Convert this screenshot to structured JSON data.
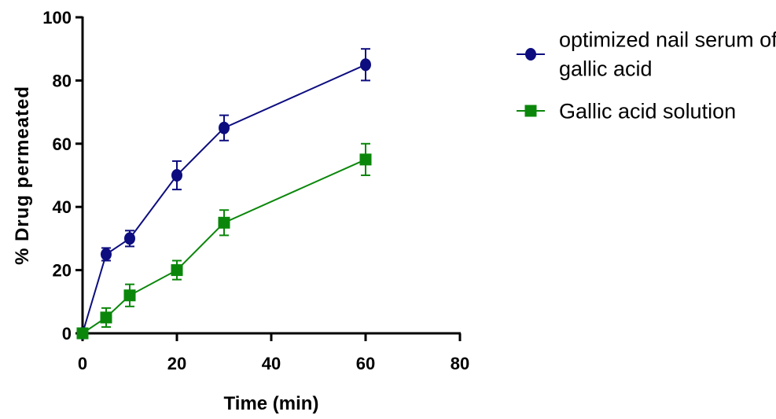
{
  "chart_data": {
    "type": "line",
    "xlabel": "Time (min)",
    "ylabel": "% Drug permeated",
    "xlim": [
      0,
      80
    ],
    "ylim": [
      0,
      100
    ],
    "x_ticks": [
      0,
      20,
      40,
      60,
      80
    ],
    "y_ticks": [
      0,
      20,
      40,
      60,
      80,
      100
    ],
    "legend_position": "top-right",
    "grid": false,
    "series": [
      {
        "name": "optimized nail serum of gallic acid",
        "legend_lines": [
          "optimized nail serum of",
          "gallic acid"
        ],
        "marker": "circle",
        "color": "#0d0d80",
        "x": [
          0,
          5,
          10,
          20,
          30,
          60
        ],
        "y": [
          0,
          25,
          30,
          50,
          65,
          85
        ],
        "error": [
          0,
          2,
          2.5,
          4.5,
          4,
          5
        ]
      },
      {
        "name": "Gallic acid solution",
        "legend_lines": [
          "Gallic acid solution"
        ],
        "marker": "square",
        "color": "#0a870a",
        "x": [
          0,
          5,
          10,
          20,
          30,
          60
        ],
        "y": [
          0,
          5,
          12,
          20,
          35,
          55
        ],
        "error": [
          0,
          3,
          3.5,
          3,
          4,
          5
        ]
      }
    ]
  }
}
